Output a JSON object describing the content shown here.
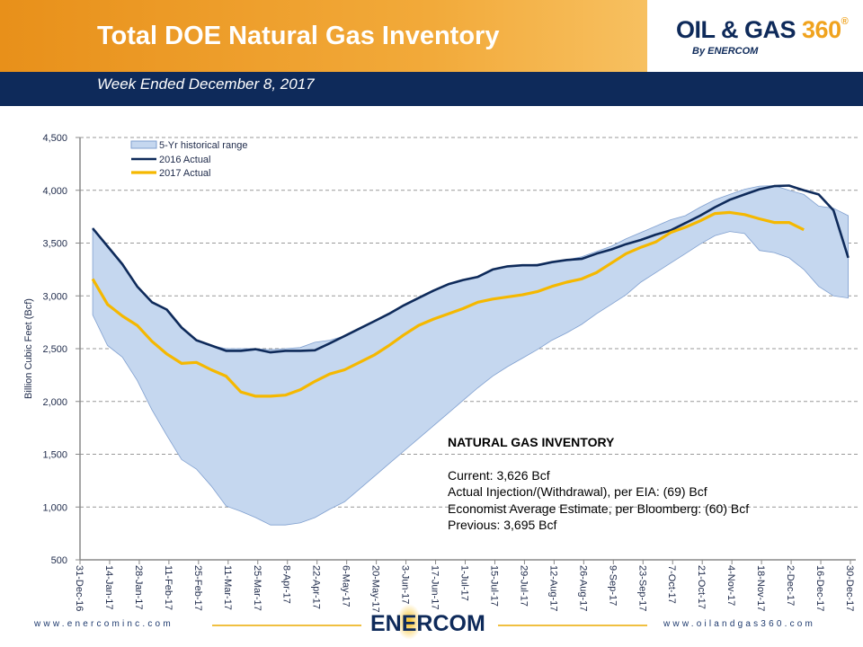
{
  "header": {
    "title": "Total DOE Natural Gas Inventory",
    "subtitle": "Week Ended December 8, 2017",
    "logo_text": "OIL & GAS 360",
    "logo_by": "By ENERCOM"
  },
  "info": {
    "heading": "NATURAL  GAS INVENTORY",
    "lines": [
      "Current:  3,626  Bcf",
      "Actual Injection/(Withdrawal),  per EIA: (69) Bcf",
      "Economist Average Estimate, per Bloomberg:  (60) Bcf",
      "Previous:  3,695 Bcf"
    ]
  },
  "footer": {
    "left": "www.enercominc.com",
    "right": "www.oilandgas360.com",
    "logo": "ENERCOM"
  },
  "chart_data": {
    "type": "line",
    "ylabel": "Billion Cubic Feet (Bcf)",
    "ylim": [
      500,
      4500
    ],
    "yticks": [
      "4,500",
      "4,000",
      "3,500",
      "3,000",
      "2,500",
      "2,000",
      "1,500",
      "1,000",
      "500"
    ],
    "xticks": [
      "31-Dec-16",
      "14-Jan-17",
      "28-Jan-17",
      "11-Feb-17",
      "25-Feb-17",
      "11-Mar-17",
      "25-Mar-17",
      "8-Apr-17",
      "22-Apr-17",
      "6-May-17",
      "20-May-17",
      "3-Jun-17",
      "17-Jun-17",
      "1-Jul-17",
      "15-Jul-17",
      "29-Jul-17",
      "12-Aug-17",
      "26-Aug-17",
      "9-Sep-17",
      "23-Sep-17",
      "7-Oct-17",
      "21-Oct-17",
      "4-Nov-17",
      "18-Nov-17",
      "2-Dec-17",
      "16-Dec-17",
      "30-Dec-17"
    ],
    "x_note_weekly_from": "6-Jan-17",
    "grid": "horizontal dashed",
    "legend": "top-left",
    "colors": {
      "range": "#c5d7ef",
      "range_edge": "#7f9fcf",
      "s2016": "#0e2a5a",
      "s2017": "#f5b800"
    },
    "range": {
      "name": "5-Yr historical range",
      "max": [
        3640,
        3470,
        3300,
        3090,
        2940,
        2870,
        2700,
        2580,
        2530,
        2500,
        2500,
        2500,
        2490,
        2500,
        2510,
        2560,
        2580,
        2620,
        2690,
        2760,
        2830,
        2910,
        2980,
        3050,
        3110,
        3150,
        3180,
        3250,
        3280,
        3290,
        3300,
        3320,
        3340,
        3370,
        3420,
        3470,
        3540,
        3600,
        3660,
        3720,
        3760,
        3840,
        3910,
        3960,
        4010,
        4040,
        4045,
        4000,
        3960,
        3850,
        3830,
        3760
      ],
      "min": [
        2820,
        2530,
        2420,
        2200,
        1920,
        1680,
        1450,
        1360,
        1200,
        1010,
        960,
        900,
        830,
        830,
        850,
        900,
        980,
        1050,
        1170,
        1290,
        1410,
        1530,
        1650,
        1770,
        1890,
        2010,
        2130,
        2240,
        2330,
        2410,
        2490,
        2580,
        2650,
        2730,
        2830,
        2920,
        3010,
        3130,
        3220,
        3310,
        3400,
        3490,
        3570,
        3610,
        3590,
        3430,
        3410,
        3360,
        3250,
        3090,
        3000,
        2980
      ]
    },
    "series": [
      {
        "name": "2016 Actual",
        "values": [
          3640,
          3470,
          3300,
          3090,
          2940,
          2870,
          2700,
          2580,
          2530,
          2480,
          2480,
          2495,
          2465,
          2480,
          2480,
          2485,
          2550,
          2620,
          2690,
          2760,
          2830,
          2910,
          2980,
          3050,
          3110,
          3150,
          3180,
          3250,
          3280,
          3290,
          3290,
          3320,
          3340,
          3350,
          3400,
          3440,
          3490,
          3530,
          3580,
          3620,
          3690,
          3760,
          3840,
          3910,
          3960,
          4010,
          4040,
          4045,
          4000,
          3960,
          3810,
          3360
        ]
      },
      {
        "name": "2017 Actual",
        "values": [
          3160,
          2920,
          2810,
          2720,
          2570,
          2450,
          2360,
          2370,
          2300,
          2240,
          2090,
          2050,
          2050,
          2060,
          2110,
          2190,
          2260,
          2300,
          2370,
          2440,
          2530,
          2630,
          2720,
          2780,
          2830,
          2880,
          2940,
          2970,
          2990,
          3010,
          3040,
          3090,
          3130,
          3160,
          3220,
          3310,
          3400,
          3460,
          3510,
          3600,
          3650,
          3710,
          3780,
          3790,
          3770,
          3730,
          3695,
          3695,
          3626
        ]
      }
    ]
  }
}
